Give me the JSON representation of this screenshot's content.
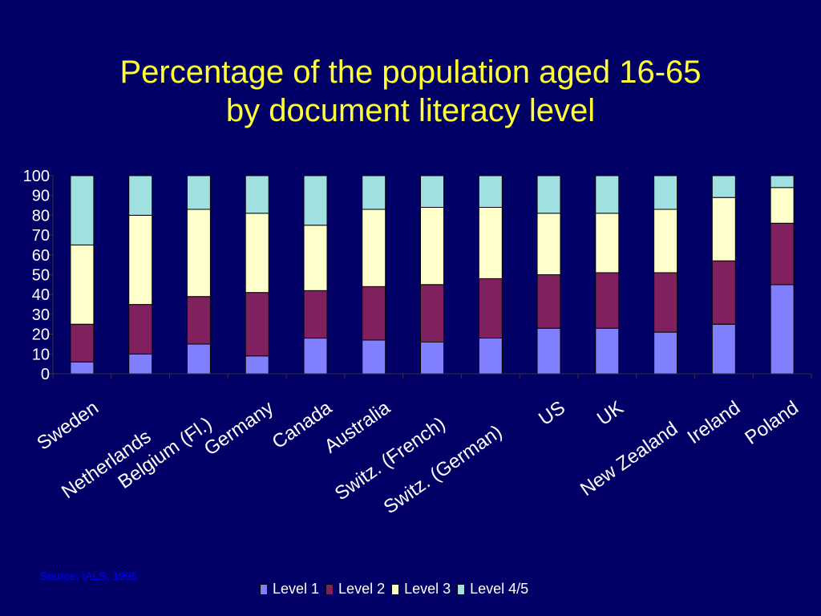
{
  "title": {
    "line1": "Percentage of the population aged 16-65",
    "line2": "by document literacy level"
  },
  "source": "Source: IALS, 1995",
  "colors": {
    "background": "#000066",
    "title": "#ffff33",
    "level1": "#8080ff",
    "level2": "#80205f",
    "level3": "#ffffcc",
    "level45": "#a0e0e0"
  },
  "chart_data": {
    "type": "bar",
    "stacked": true,
    "categories": [
      "Sweden",
      "Netherlands",
      "Belgium (Fl.)",
      "Germany",
      "Canada",
      "Australia",
      "Switz. (French)",
      "Switz. (German)",
      "US",
      "UK",
      "New Zealand",
      "Ireland",
      "Poland"
    ],
    "series": [
      {
        "name": "Level 1",
        "values": [
          6,
          10,
          15,
          9,
          18,
          17,
          16,
          18,
          23,
          23,
          21,
          25,
          45
        ]
      },
      {
        "name": "Level 2",
        "values": [
          19,
          25,
          24,
          32,
          24,
          27,
          29,
          30,
          27,
          28,
          30,
          32,
          31
        ]
      },
      {
        "name": "Level 3",
        "values": [
          40,
          45,
          44,
          40,
          33,
          39,
          39,
          36,
          31,
          30,
          32,
          32,
          18
        ]
      },
      {
        "name": "Level 4/5",
        "values": [
          35,
          20,
          17,
          19,
          25,
          17,
          16,
          16,
          19,
          19,
          17,
          11,
          6
        ]
      }
    ],
    "ylim": [
      0,
      100
    ],
    "yticks": [
      0,
      10,
      20,
      30,
      40,
      50,
      60,
      70,
      80,
      90,
      100
    ],
    "grid": false,
    "legend": "bottom"
  }
}
